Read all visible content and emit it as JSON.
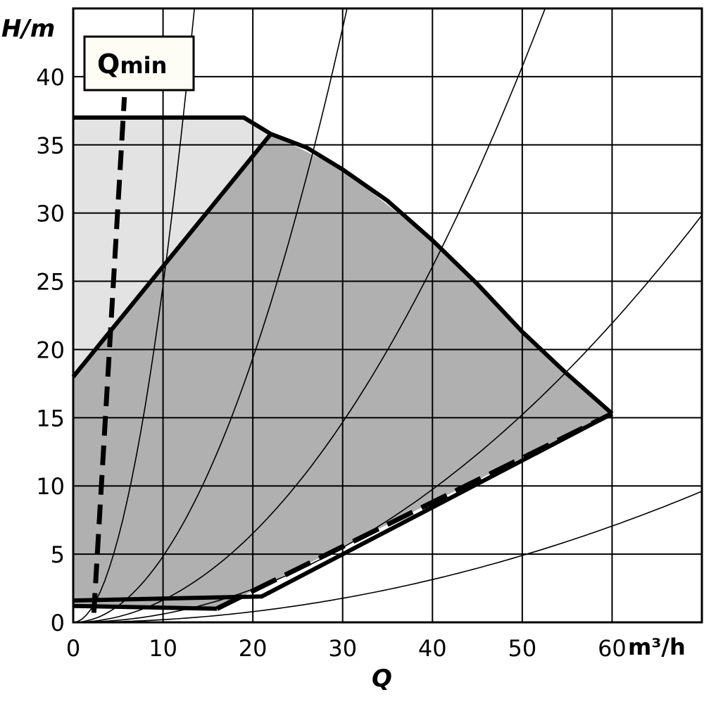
{
  "chart_data": {
    "type": "line",
    "title": "",
    "xlabel": "Q",
    "xunit": "m³/h",
    "ylabel": "H/m",
    "xlim": [
      0,
      70
    ],
    "ylim": [
      0,
      45
    ],
    "xticks": [
      0,
      10,
      20,
      30,
      40,
      50,
      60
    ],
    "yticks": [
      0,
      5,
      10,
      15,
      20,
      25,
      30,
      35,
      40
    ],
    "grid": true,
    "colors": {
      "light_region": "#e3e3e3",
      "dark_region": "#b1b0b0",
      "line": "#000000"
    },
    "regions": [
      {
        "shade": "light",
        "points": [
          [
            0,
            37
          ],
          [
            19,
            37
          ],
          [
            22,
            35.8
          ],
          [
            0,
            18
          ]
        ]
      },
      {
        "shade": "dark",
        "points": [
          [
            0,
            18
          ],
          [
            22,
            35.8
          ],
          [
            30,
            33.2
          ],
          [
            40,
            28
          ],
          [
            50,
            21.3
          ],
          [
            60,
            15.3
          ],
          [
            16,
            1.0
          ],
          [
            0,
            1.2
          ]
        ]
      }
    ],
    "series": [
      {
        "style": "thick",
        "points": [
          [
            0,
            37
          ],
          [
            19,
            37
          ],
          [
            22,
            35.8
          ],
          [
            26,
            34.8
          ],
          [
            30,
            33.2
          ],
          [
            35,
            30.9
          ],
          [
            40,
            28
          ],
          [
            45,
            24.8
          ],
          [
            50,
            21.3
          ],
          [
            55,
            18.2
          ],
          [
            60,
            15.3
          ]
        ]
      },
      {
        "style": "thick",
        "points": [
          [
            0,
            18
          ],
          [
            22,
            35.8
          ]
        ]
      },
      {
        "style": "thick",
        "points": [
          [
            0,
            1.6
          ],
          [
            21,
            1.9
          ],
          [
            60,
            15.3
          ]
        ]
      },
      {
        "style": "thick",
        "points": [
          [
            0,
            1.2
          ],
          [
            16,
            1.0
          ]
        ]
      },
      {
        "style": "dashed-thick",
        "points": [
          [
            16,
            1.0
          ],
          [
            60,
            15.3
          ]
        ]
      },
      {
        "name": "Qmin",
        "style": "dashed-thick",
        "points": [
          [
            2.3,
            0.7
          ],
          [
            5.7,
            38.5
          ]
        ]
      }
    ],
    "system_curves_k": [
      0.247,
      0.0484,
      0.0163,
      0.00609,
      0.00196
    ],
    "annotations": [
      {
        "text": "Q",
        "sub": "min"
      }
    ]
  }
}
